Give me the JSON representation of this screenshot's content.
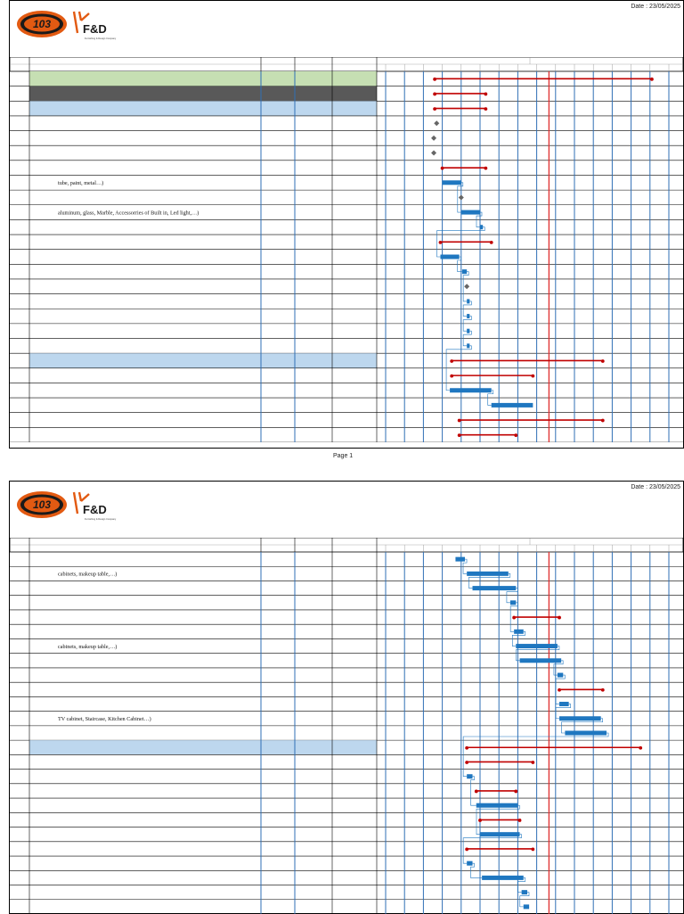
{
  "header": {
    "logo_mark": "103",
    "logo_brand": "F&D",
    "logo_tagline": "Furnishing & Design Company",
    "date_text": "Date : 23/05/2025"
  },
  "footer": {
    "page_label": "Page 1"
  },
  "colors": {
    "summary_green": "#c6dfb3",
    "summary_dark": "#595959",
    "summary_blue": "#bdd7ee",
    "task_bar": "#1f77c0",
    "summary_bar": "#c00000",
    "today_line": "#e03030",
    "grid_line": "#2f6fb5"
  },
  "pages": [
    {
      "rows": [
        {
          "fill": "green",
          "text": ""
        },
        {
          "fill": "dark",
          "text": ""
        },
        {
          "fill": "blue",
          "text": ""
        },
        {
          "fill": "",
          "text": ""
        },
        {
          "fill": "",
          "text": ""
        },
        {
          "fill": "",
          "text": ""
        },
        {
          "fill": "",
          "text": ""
        },
        {
          "fill": "",
          "text": "tube, paint, metal…)"
        },
        {
          "fill": "",
          "text": ""
        },
        {
          "fill": "",
          "text": "aluminum, glass, Marble, Accessorries of Built in, Led light,…)"
        },
        {
          "fill": "",
          "text": ""
        },
        {
          "fill": "",
          "text": ""
        },
        {
          "fill": "",
          "text": ""
        },
        {
          "fill": "",
          "text": ""
        },
        {
          "fill": "",
          "text": ""
        },
        {
          "fill": "",
          "text": ""
        },
        {
          "fill": "",
          "text": ""
        },
        {
          "fill": "",
          "text": ""
        },
        {
          "fill": "",
          "text": ""
        },
        {
          "fill": "blue",
          "text": ""
        },
        {
          "fill": "",
          "text": ""
        },
        {
          "fill": "",
          "text": ""
        },
        {
          "fill": "",
          "text": ""
        },
        {
          "fill": "",
          "text": ""
        },
        {
          "fill": "",
          "text": ""
        }
      ],
      "bars": [
        {
          "row": 0,
          "type": "summary",
          "start": 2.6,
          "end": 14.1
        },
        {
          "row": 1,
          "type": "summary",
          "start": 2.6,
          "end": 5.3
        },
        {
          "row": 2,
          "type": "summary",
          "start": 2.6,
          "end": 5.3
        },
        {
          "row": 3,
          "type": "milestone",
          "start": 2.7,
          "end": 2.8
        },
        {
          "row": 4,
          "type": "milestone",
          "start": 2.55,
          "end": 2.6
        },
        {
          "row": 5,
          "type": "milestone",
          "start": 2.55,
          "end": 2.6
        },
        {
          "row": 6,
          "type": "summary",
          "start": 3.0,
          "end": 5.3
        },
        {
          "row": 7,
          "type": "task",
          "start": 3.0,
          "end": 4.0
        },
        {
          "row": 8,
          "type": "milestone",
          "start": 4.0,
          "end": 4.05
        },
        {
          "row": 9,
          "type": "task",
          "start": 4.0,
          "end": 5.0
        },
        {
          "row": 10,
          "type": "task",
          "start": 5.0,
          "end": 5.15
        },
        {
          "row": 11,
          "type": "summary",
          "start": 2.9,
          "end": 5.6
        },
        {
          "row": 12,
          "type": "task",
          "start": 2.9,
          "end": 3.9
        },
        {
          "row": 13,
          "type": "task",
          "start": 4.05,
          "end": 4.3
        },
        {
          "row": 14,
          "type": "milestone",
          "start": 4.3,
          "end": 4.45
        },
        {
          "row": 15,
          "type": "task",
          "start": 4.3,
          "end": 4.45
        },
        {
          "row": 16,
          "type": "task",
          "start": 4.3,
          "end": 4.45
        },
        {
          "row": 17,
          "type": "task",
          "start": 4.3,
          "end": 4.45
        },
        {
          "row": 18,
          "type": "task",
          "start": 4.3,
          "end": 4.45
        },
        {
          "row": 19,
          "type": "summary",
          "start": 3.5,
          "end": 11.5
        },
        {
          "row": 20,
          "type": "summary",
          "start": 3.5,
          "end": 7.8
        },
        {
          "row": 21,
          "type": "task",
          "start": 3.4,
          "end": 5.6
        },
        {
          "row": 22,
          "type": "task",
          "start": 5.6,
          "end": 7.8
        },
        {
          "row": 23,
          "type": "summary",
          "start": 3.9,
          "end": 11.5
        },
        {
          "row": 24,
          "type": "summary",
          "start": 3.9,
          "end": 6.9
        }
      ]
    },
    {
      "rows": [
        {
          "fill": "",
          "text": ""
        },
        {
          "fill": "",
          "text": "cabinets, makeup table,…)"
        },
        {
          "fill": "",
          "text": ""
        },
        {
          "fill": "",
          "text": ""
        },
        {
          "fill": "",
          "text": ""
        },
        {
          "fill": "",
          "text": ""
        },
        {
          "fill": "",
          "text": "cabinets, makeup table,…)"
        },
        {
          "fill": "",
          "text": ""
        },
        {
          "fill": "",
          "text": ""
        },
        {
          "fill": "",
          "text": ""
        },
        {
          "fill": "",
          "text": ""
        },
        {
          "fill": "",
          "text": "TV cabinet, Staircase, Kitchen Cabinet…)"
        },
        {
          "fill": "",
          "text": ""
        },
        {
          "fill": "blue",
          "text": ""
        },
        {
          "fill": "",
          "text": ""
        },
        {
          "fill": "",
          "text": ""
        },
        {
          "fill": "",
          "text": ""
        },
        {
          "fill": "",
          "text": ""
        },
        {
          "fill": "",
          "text": ""
        },
        {
          "fill": "",
          "text": ""
        },
        {
          "fill": "",
          "text": ""
        },
        {
          "fill": "",
          "text": ""
        },
        {
          "fill": "",
          "text": ""
        },
        {
          "fill": "",
          "text": ""
        },
        {
          "fill": "",
          "text": ""
        }
      ],
      "bars": [
        {
          "row": 0,
          "type": "task",
          "start": 3.7,
          "end": 4.2
        },
        {
          "row": 1,
          "type": "task",
          "start": 4.3,
          "end": 6.5
        },
        {
          "row": 2,
          "type": "task",
          "start": 4.6,
          "end": 6.9
        },
        {
          "row": 3,
          "type": "task",
          "start": 6.6,
          "end": 6.9
        },
        {
          "row": 4,
          "type": "summary",
          "start": 6.8,
          "end": 9.2
        },
        {
          "row": 5,
          "type": "task",
          "start": 6.8,
          "end": 7.3
        },
        {
          "row": 6,
          "type": "task",
          "start": 6.9,
          "end": 9.1
        },
        {
          "row": 7,
          "type": "task",
          "start": 7.1,
          "end": 9.3
        },
        {
          "row": 8,
          "type": "task",
          "start": 9.1,
          "end": 9.4
        },
        {
          "row": 9,
          "type": "summary",
          "start": 9.2,
          "end": 11.5
        },
        {
          "row": 10,
          "type": "task",
          "start": 9.2,
          "end": 9.7
        },
        {
          "row": 11,
          "type": "task",
          "start": 9.2,
          "end": 11.4
        },
        {
          "row": 12,
          "type": "task",
          "start": 9.5,
          "end": 11.7
        },
        {
          "row": 13,
          "type": "summary",
          "start": 4.3,
          "end": 13.5
        },
        {
          "row": 14,
          "type": "summary",
          "start": 4.3,
          "end": 7.8
        },
        {
          "row": 15,
          "type": "task",
          "start": 4.3,
          "end": 4.6
        },
        {
          "row": 16,
          "type": "summary",
          "start": 4.8,
          "end": 6.9
        },
        {
          "row": 17,
          "type": "task",
          "start": 4.8,
          "end": 7.0
        },
        {
          "row": 18,
          "type": "summary",
          "start": 5.0,
          "end": 7.1
        },
        {
          "row": 19,
          "type": "task",
          "start": 5.0,
          "end": 7.1
        },
        {
          "row": 20,
          "type": "summary",
          "start": 4.3,
          "end": 7.8
        },
        {
          "row": 21,
          "type": "task",
          "start": 4.3,
          "end": 4.6
        },
        {
          "row": 22,
          "type": "task",
          "start": 5.1,
          "end": 7.3
        },
        {
          "row": 23,
          "type": "task",
          "start": 7.2,
          "end": 7.5
        },
        {
          "row": 24,
          "type": "task",
          "start": 7.3,
          "end": 7.6
        }
      ]
    }
  ]
}
